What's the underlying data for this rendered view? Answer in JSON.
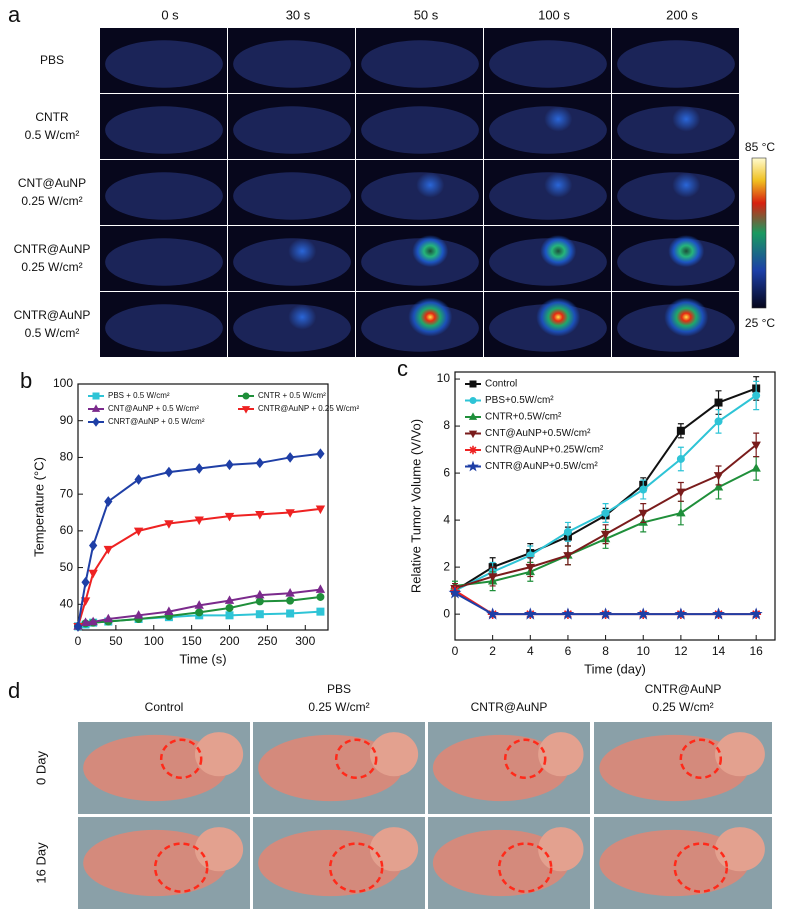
{
  "panel_a": {
    "label": "a",
    "times": [
      "0 s",
      "30 s",
      "50 s",
      "100 s",
      "200 s"
    ],
    "rows": [
      [
        "PBS"
      ],
      [
        "CNTR",
        "0.5 W/cm²"
      ],
      [
        "CNT@AuNP",
        "0.25 W/cm²"
      ],
      [
        "CNTR@AuNP",
        "0.25 W/cm²"
      ],
      [
        "CNTR@AuNP",
        "0.5 W/cm²"
      ]
    ],
    "colorbar": {
      "max": "85 °C",
      "min": "25 °C"
    }
  },
  "chart_data": [
    {
      "type": "line",
      "panel": "b",
      "x_label": "Time (s)",
      "y_label": "Temperature (°C)",
      "x": [
        0,
        10,
        20,
        40,
        80,
        120,
        160,
        200,
        240,
        280,
        320
      ],
      "xlim": [
        0,
        330
      ],
      "xticks": [
        0,
        50,
        100,
        150,
        200,
        250,
        300
      ],
      "ylim": [
        33,
        100
      ],
      "yticks": [
        40,
        50,
        60,
        70,
        80,
        90,
        100
      ],
      "legend": "upper left",
      "legend_columns": 2,
      "series": [
        {
          "name": "PBS + 0.5 W/cm²",
          "color": "#2ec4d6",
          "marker": "square",
          "values": [
            34,
            34.5,
            35,
            35.3,
            36,
            36.5,
            37,
            37,
            37.3,
            37.5,
            38
          ]
        },
        {
          "name": "CNTR + 0.5 W/cm²",
          "color": "#1f8f3a",
          "marker": "circle",
          "values": [
            34,
            34.8,
            35,
            35.3,
            36,
            36.8,
            37.8,
            39,
            40.8,
            41,
            42
          ]
        },
        {
          "name": "CNT@AuNP + 0.5 W/cm²",
          "color": "#7b2a8c",
          "marker": "triangle",
          "values": [
            34,
            35,
            35.2,
            36,
            37,
            38,
            39.7,
            41,
            42.5,
            43,
            44
          ]
        },
        {
          "name": "CNTR@AuNP + 0.25 W/cm²",
          "color": "#ee2222",
          "marker": "triangle-down",
          "values": [
            34,
            41,
            48.5,
            55,
            60,
            62,
            63,
            64,
            64.5,
            65,
            66
          ]
        },
        {
          "name": "CNRT@AuNP + 0.5 W/cm²",
          "color": "#1f3fa6",
          "marker": "diamond",
          "values": [
            34,
            46,
            56,
            68,
            74,
            76,
            77,
            78,
            78.5,
            80,
            81
          ]
        }
      ]
    },
    {
      "type": "line",
      "panel": "c",
      "x_label": "Time (day)",
      "y_label": "Relative Tumor Volume (V/Vo)",
      "x": [
        0,
        2,
        4,
        6,
        8,
        10,
        12,
        14,
        16
      ],
      "xlim": [
        0,
        17
      ],
      "xticks": [
        0,
        2,
        4,
        6,
        8,
        10,
        12,
        14,
        16
      ],
      "ylim": [
        -1.1,
        10.3
      ],
      "yticks": [
        0,
        2,
        4,
        6,
        8,
        10
      ],
      "legend": "upper left",
      "legend_columns": 1,
      "series": [
        {
          "name": "Control",
          "color": "#111111",
          "marker": "square",
          "values": [
            1,
            2,
            2.6,
            3.3,
            4.2,
            5.5,
            7.8,
            9,
            9.6
          ],
          "errors": [
            0.2,
            0.4,
            0.4,
            0.4,
            0.3,
            0.3,
            0.3,
            0.5,
            0.5
          ]
        },
        {
          "name": "PBS+0.5W/cm²",
          "color": "#2ec4d6",
          "marker": "circle",
          "values": [
            1,
            1.8,
            2.5,
            3.5,
            4.3,
            5.3,
            6.6,
            8.2,
            9.3
          ],
          "errors": [
            0.2,
            0.4,
            0.4,
            0.4,
            0.4,
            0.4,
            0.5,
            0.5,
            0.6
          ]
        },
        {
          "name": "CNTR+0.5W/cm²",
          "color": "#1f8f3a",
          "marker": "triangle",
          "values": [
            1.2,
            1.4,
            1.8,
            2.5,
            3.2,
            3.9,
            4.3,
            5.4,
            6.2
          ],
          "errors": [
            0.2,
            0.4,
            0.4,
            0.4,
            0.4,
            0.4,
            0.5,
            0.5,
            0.5
          ]
        },
        {
          "name": "CNT@AuNP+0.5W/cm²",
          "color": "#7a1c1c",
          "marker": "triangle-down",
          "values": [
            1.1,
            1.6,
            2,
            2.5,
            3.4,
            4.3,
            5.2,
            5.9,
            7.2
          ],
          "errors": [
            0.2,
            0.4,
            0.4,
            0.4,
            0.4,
            0.4,
            0.4,
            0.4,
            0.5
          ]
        },
        {
          "name": "CNTR@AuNP+0.25W/cm²",
          "color": "#ee2222",
          "marker": "asterisk",
          "values": [
            1,
            0,
            0,
            0,
            0,
            0,
            0,
            0,
            0
          ]
        },
        {
          "name": "CNTR@AuNP+0.5W/cm²",
          "color": "#1f3fa6",
          "marker": "star",
          "values": [
            0.9,
            0,
            0,
            0,
            0,
            0,
            0,
            0,
            0
          ]
        }
      ]
    }
  ],
  "panel_d": {
    "label": "d",
    "columns": [
      [
        "Control"
      ],
      [
        "PBS",
        "0.25 W/cm²"
      ],
      [
        "CNTR@AuNP"
      ],
      [
        "CNTR@AuNP",
        "0.25 W/cm²"
      ]
    ],
    "rows": [
      "0 Day",
      "16 Day"
    ]
  }
}
